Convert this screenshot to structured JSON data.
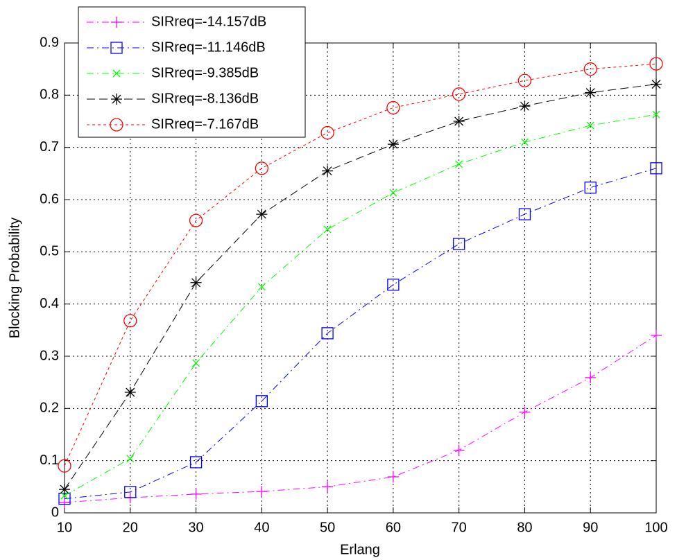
{
  "chart_data": {
    "type": "line",
    "x_label": "Erlang",
    "y_label": "Blocking Probability",
    "x": [
      10,
      20,
      30,
      40,
      50,
      60,
      70,
      80,
      90,
      100
    ],
    "xlim": [
      10,
      100
    ],
    "xticks": [
      10,
      20,
      30,
      40,
      50,
      60,
      70,
      80,
      90,
      100
    ],
    "ylim": [
      0,
      0.9
    ],
    "yticks": [
      0,
      0.1,
      0.2,
      0.3,
      0.4,
      0.5,
      0.6,
      0.7,
      0.8,
      0.9
    ],
    "grid": true,
    "legend": "northwest",
    "series": [
      {
        "name": "SIRreq=-14.157dB",
        "color": "#ff00ff",
        "marker": "+",
        "linestyle": "-.",
        "values": [
          0.02,
          0.029,
          0.036,
          0.041,
          0.05,
          0.069,
          0.12,
          0.193,
          0.259,
          0.34
        ]
      },
      {
        "name": "SIRreq=-11.146dB",
        "color": "#0000ff",
        "marker": "s",
        "linestyle": "-.",
        "values": [
          0.027,
          0.04,
          0.097,
          0.214,
          0.344,
          0.437,
          0.515,
          0.572,
          0.623,
          0.66
        ]
      },
      {
        "name": "SIRreq=-9.385dB",
        "color": "#00ff00",
        "marker": "x",
        "linestyle": "-.",
        "values": [
          0.033,
          0.104,
          0.287,
          0.433,
          0.543,
          0.613,
          0.668,
          0.71,
          0.742,
          0.763
        ]
      },
      {
        "name": "SIRreq=-8.136dB",
        "color": "#000000",
        "marker": "*",
        "linestyle": "--",
        "values": [
          0.045,
          0.231,
          0.441,
          0.572,
          0.655,
          0.706,
          0.75,
          0.779,
          0.805,
          0.821
        ]
      },
      {
        "name": "SIRreq=-7.167dB",
        "color": "#ff0000",
        "marker": "o",
        "linestyle": ":",
        "values": [
          0.09,
          0.368,
          0.56,
          0.66,
          0.728,
          0.776,
          0.802,
          0.828,
          0.85,
          0.86
        ]
      }
    ]
  }
}
